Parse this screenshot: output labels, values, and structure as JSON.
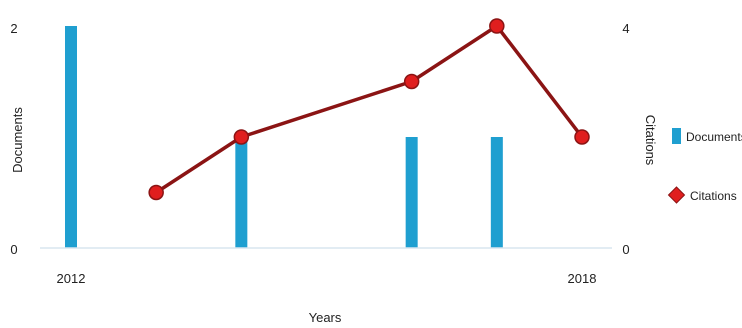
{
  "chart_data": {
    "type": "bar+line",
    "x": [
      2012,
      2013,
      2014,
      2015,
      2016,
      2017,
      2018
    ],
    "x_tick_labels": [
      "2012",
      "2018"
    ],
    "xlabel": "Years",
    "ylabel_left": "Documents",
    "ylabel_right": "Citations",
    "left_ticks": [
      "0",
      "2"
    ],
    "right_ticks": [
      "0",
      "4"
    ],
    "ylim_left": [
      0,
      2
    ],
    "ylim_right": [
      0,
      4
    ],
    "series": [
      {
        "name": "Documents",
        "kind": "bar",
        "axis": "left",
        "color": "#1f9fd0",
        "x": [
          2012,
          2014,
          2016,
          2017
        ],
        "values": [
          2,
          1,
          1,
          1
        ]
      },
      {
        "name": "Citations",
        "kind": "line",
        "axis": "right",
        "color": "#8b1414",
        "marker_color": "#e01e1e",
        "x": [
          2013,
          2014,
          2016,
          2017,
          2018
        ],
        "values": [
          1,
          2,
          3,
          4,
          2
        ]
      }
    ],
    "legend": "right",
    "grid": false
  }
}
